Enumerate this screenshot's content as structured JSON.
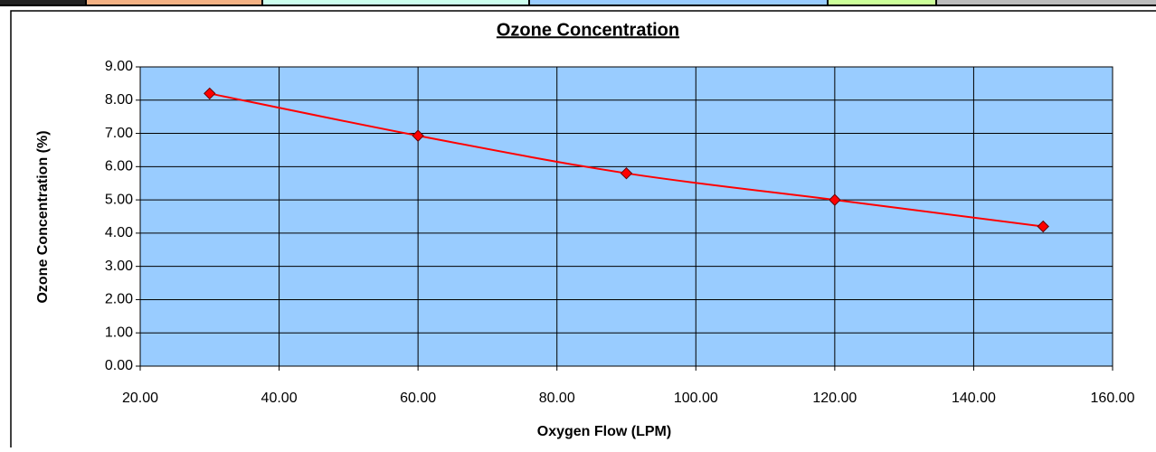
{
  "chart_data": {
    "type": "line",
    "title": "Ozone Concentration",
    "x_label": "Oxygen Flow (LPM)",
    "y_label": "Ozone Concentration (%)",
    "x": [
      30,
      60,
      90,
      120,
      150
    ],
    "series": [
      {
        "name": "Ozone Concentration",
        "color": "#ff0000",
        "values": [
          8.2,
          6.93,
          5.8,
          5.0,
          4.2
        ]
      }
    ],
    "xlim": [
      20,
      160
    ],
    "xticks": [
      {
        "value": 20,
        "label": "20.00"
      },
      {
        "value": 40,
        "label": "40.00"
      },
      {
        "value": 60,
        "label": "60.00"
      },
      {
        "value": 80,
        "label": "80.00"
      },
      {
        "value": 100,
        "label": "100.00"
      },
      {
        "value": 120,
        "label": "120.00"
      },
      {
        "value": 140,
        "label": "140.00"
      },
      {
        "value": 160,
        "label": "160.00"
      }
    ],
    "ylim": [
      0,
      9
    ],
    "yticks": [
      {
        "value": 0,
        "label": "0.00"
      },
      {
        "value": 1,
        "label": "1.00"
      },
      {
        "value": 2,
        "label": "2.00"
      },
      {
        "value": 3,
        "label": "3.00"
      },
      {
        "value": 4,
        "label": "4.00"
      },
      {
        "value": 5,
        "label": "5.00"
      },
      {
        "value": 6,
        "label": "6.00"
      },
      {
        "value": 7,
        "label": "7.00"
      },
      {
        "value": 8,
        "label": "8.00"
      },
      {
        "value": 9,
        "label": "9.00"
      }
    ],
    "grid": true,
    "background": "#99ccff"
  }
}
